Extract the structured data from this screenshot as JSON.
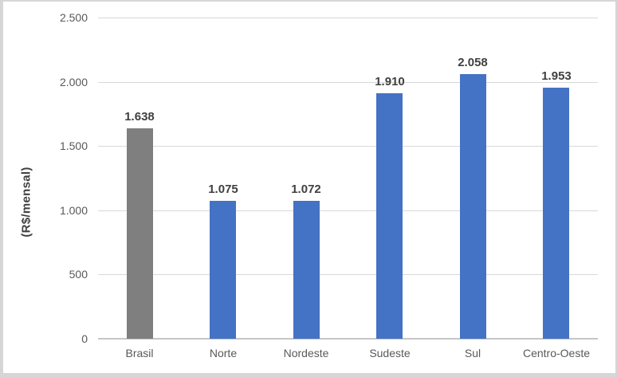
{
  "chart_data": {
    "type": "bar",
    "categories": [
      "Brasil",
      "Norte",
      "Nordeste",
      "Sudeste",
      "Sul",
      "Centro-Oeste"
    ],
    "values": [
      1638,
      1075,
      1072,
      1910,
      2058,
      1953
    ],
    "value_labels": [
      "1.638",
      "1.075",
      "1.072",
      "1.910",
      "2.058",
      "1.953"
    ],
    "bar_colors": [
      "#7F7F7F",
      "#4472C4",
      "#4472C4",
      "#4472C4",
      "#4472C4",
      "#4472C4"
    ],
    "title": "",
    "xlabel": "",
    "ylabel": "(R$/mensal)",
    "ylim": [
      0,
      2500
    ],
    "yticks": [
      0,
      500,
      1000,
      1500,
      2000,
      2500
    ],
    "ytick_labels": [
      "0",
      "500",
      "1.000",
      "1.500",
      "2.000",
      "2.500"
    ],
    "grid": true,
    "legend": false,
    "colors": {
      "bar_blue": "#4472C4",
      "bar_gray": "#7F7F7F",
      "gridline": "#D9D9D9",
      "axis_line": "#C6C6C6",
      "tick_text": "#595959",
      "label_text": "#404040"
    }
  }
}
